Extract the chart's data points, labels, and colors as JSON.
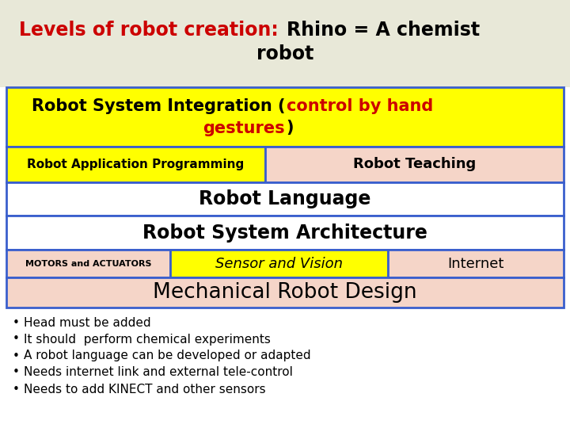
{
  "title_color1": "#cc0000",
  "title_color2": "#000000",
  "title_bg": "#e8e8d8",
  "bg_color": "#ffffff",
  "border_color": "#3a5fcd",
  "row1_bg": "#ffff00",
  "row2a_text": "Robot Application Programming",
  "row2a_bg": "#ffff00",
  "row2b_text": "Robot Teaching",
  "row2b_bg": "#f5d5c8",
  "row3_text": "Robot Language",
  "row3_bg": "#ffffff",
  "row4_text": "Robot System Architecture",
  "row4_bg": "#ffffff",
  "row5a_text": "MOTORS and ACTUATORS",
  "row5a_bg": "#f5d5c8",
  "row5b_text": "Sensor and Vision",
  "row5b_bg": "#ffff00",
  "row5c_text": "Internet",
  "row5c_bg": "#f5d5c8",
  "row6_text": "Mechanical Robot Design",
  "row6_bg": "#f5d5c8",
  "bullets": [
    "Head must be added",
    "It should  perform chemical experiments",
    "A robot language can be developed or adapted",
    "Needs internet link and external tele-control",
    "Needs to add KINECT and other sensors"
  ]
}
